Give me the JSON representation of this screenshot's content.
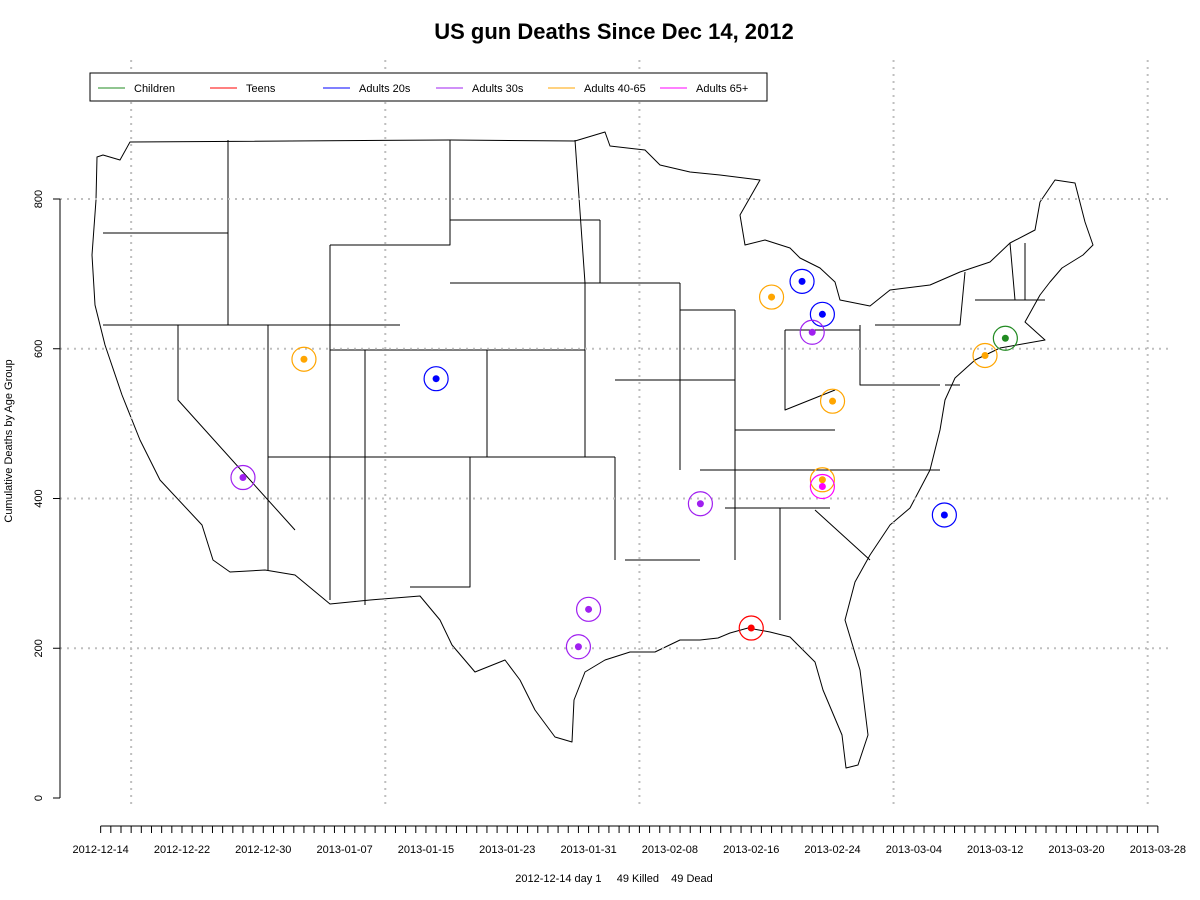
{
  "chart_data": {
    "type": "scatter",
    "title": "US gun Deaths Since Dec 14, 2012",
    "xlabel": "2012-12-14 day 1     49 Killed    49 Dead",
    "ylabel": "Cumulative Deaths by Age Group",
    "x_axis": {
      "type": "date",
      "range": [
        "2012-12-10",
        "2013-03-29"
      ],
      "tick_labels": [
        "2012-12-14",
        "2012-12-22",
        "2012-12-30",
        "2013-01-07",
        "2013-01-15",
        "2013-01-23",
        "2013-01-31",
        "2013-02-08",
        "2013-02-16",
        "2013-02-24",
        "2013-03-04",
        "2013-03-12",
        "2013-03-20",
        "2013-03-28"
      ],
      "minor_ticks": "daily"
    },
    "y_axis": {
      "range": [
        0,
        800
      ],
      "ticks": [
        0,
        200,
        400,
        600,
        800
      ]
    },
    "grid": "dotted",
    "legend": {
      "placement": "top-left",
      "entries": [
        {
          "label": "Children",
          "color": "#228b22"
        },
        {
          "label": "Teens",
          "color": "#ff0000"
        },
        {
          "label": "Adults 20s",
          "color": "#0000ff"
        },
        {
          "label": "Adults 30s",
          "color": "#a020f0"
        },
        {
          "label": "Adults 40-65",
          "color": "#ffa500"
        },
        {
          "label": "Adults 65+",
          "color": "#ff00ff"
        }
      ]
    },
    "background": "map of the contiguous United States with state borders",
    "series": [
      {
        "name": "Children",
        "color": "#228b22",
        "points": [
          {
            "x": "2013-03-13",
            "y": 614
          }
        ]
      },
      {
        "name": "Teens",
        "color": "#ff0000",
        "points": [
          {
            "x": "2013-02-16",
            "y": 227
          }
        ]
      },
      {
        "name": "Adults 20s",
        "color": "#0000ff",
        "points": [
          {
            "x": "2013-01-16",
            "y": 560
          },
          {
            "x": "2013-02-21",
            "y": 690
          },
          {
            "x": "2013-02-23",
            "y": 646
          },
          {
            "x": "2013-03-07",
            "y": 378
          }
        ]
      },
      {
        "name": "Adults 30s",
        "color": "#a020f0",
        "points": [
          {
            "x": "2012-12-28",
            "y": 428
          },
          {
            "x": "2013-01-30",
            "y": 202
          },
          {
            "x": "2013-01-31",
            "y": 252
          },
          {
            "x": "2013-02-11",
            "y": 393
          },
          {
            "x": "2013-02-22",
            "y": 622
          }
        ]
      },
      {
        "name": "Adults 40-65",
        "color": "#ffa500",
        "points": [
          {
            "x": "2013-01-03",
            "y": 586
          },
          {
            "x": "2013-02-18",
            "y": 669
          },
          {
            "x": "2013-02-24",
            "y": 530
          },
          {
            "x": "2013-02-23",
            "y": 425
          },
          {
            "x": "2013-03-11",
            "y": 591
          }
        ]
      },
      {
        "name": "Adults 65+",
        "color": "#ff00ff",
        "points": [
          {
            "x": "2013-02-23",
            "y": 416
          }
        ]
      }
    ]
  }
}
